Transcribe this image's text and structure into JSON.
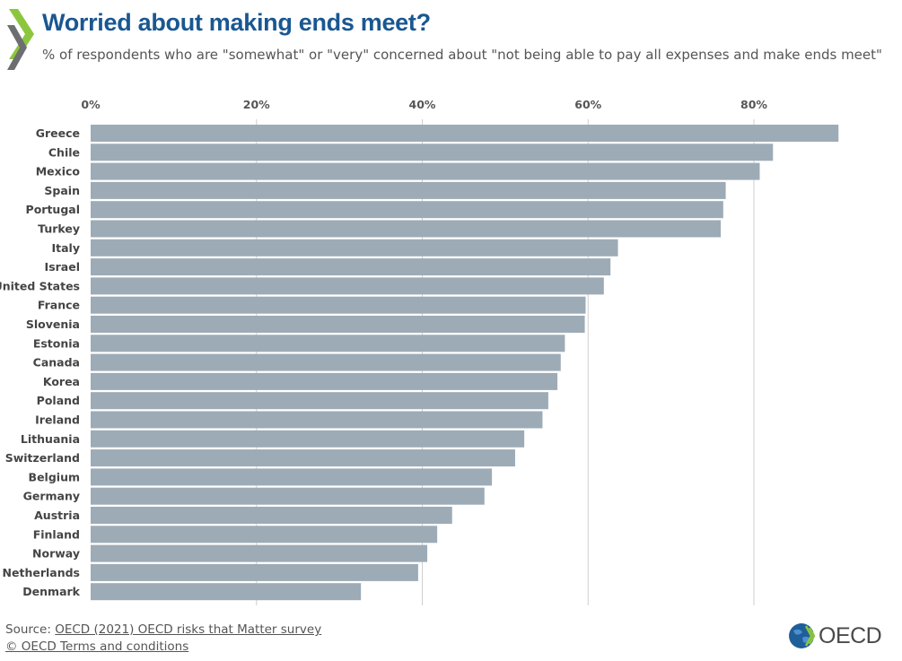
{
  "header": {
    "title": "Worried about making ends meet?",
    "subtitle": "% of respondents who are \"somewhat\" or \"very\" concerned about \"not being able to pay all expenses and make ends meet\""
  },
  "footer": {
    "source_prefix": "Source: ",
    "source_link": "OECD (2021) OECD risks that Matter survey",
    "terms_link": "© OECD Terms and conditions",
    "logo_text": "OECD"
  },
  "colors": {
    "bar": "#9dabb6",
    "grid": "#cfcfcf",
    "title": "#1a5791",
    "text": "#333333"
  },
  "chart_data": {
    "type": "bar",
    "orientation": "horizontal",
    "title": "Worried about making ends meet?",
    "xlabel": "",
    "ylabel": "",
    "xlim": [
      0,
      92
    ],
    "xticks": [
      0,
      20,
      40,
      60,
      80
    ],
    "xtick_labels": [
      "0%",
      "20%",
      "40%",
      "60%",
      "80%"
    ],
    "grid": true,
    "categories": [
      "Greece",
      "Chile",
      "Mexico",
      "Spain",
      "Portugal",
      "Turkey",
      "Italy",
      "Israel",
      "United States",
      "France",
      "Slovenia",
      "Estonia",
      "Canada",
      "Korea",
      "Poland",
      "Ireland",
      "Lithuania",
      "Switzerland",
      "Belgium",
      "Germany",
      "Austria",
      "Finland",
      "Norway",
      "Netherlands",
      "Denmark"
    ],
    "values": [
      90.2,
      82.3,
      80.7,
      76.6,
      76.3,
      76.0,
      63.6,
      62.7,
      61.9,
      59.7,
      59.6,
      57.2,
      56.7,
      56.3,
      55.2,
      54.5,
      52.3,
      51.2,
      48.4,
      47.5,
      43.6,
      41.8,
      40.6,
      39.5,
      32.6
    ]
  }
}
